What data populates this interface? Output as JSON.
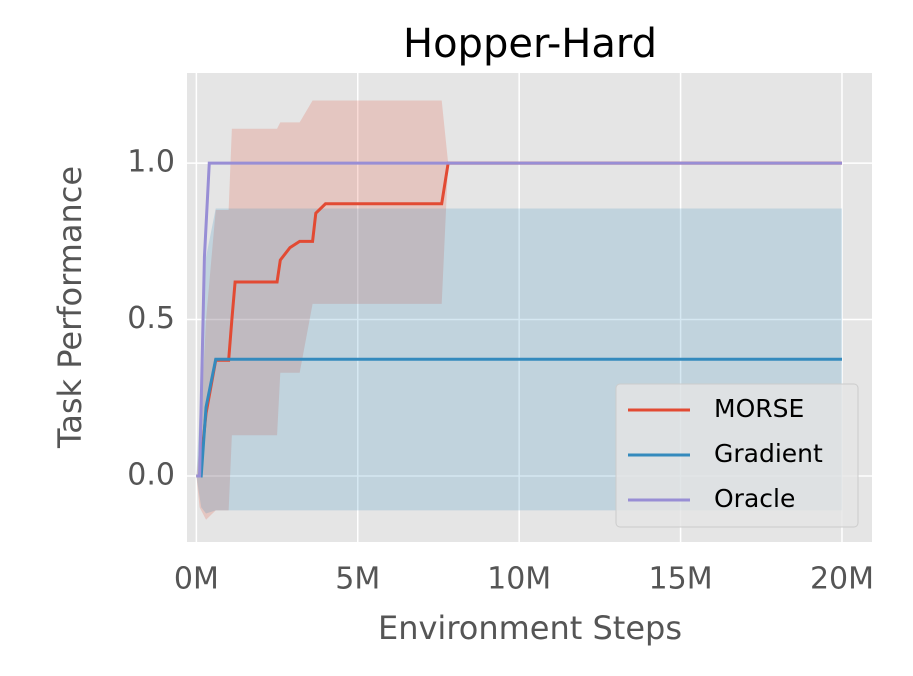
{
  "chart_data": {
    "type": "line",
    "title": "Hopper-Hard",
    "x_label": "Environment Steps",
    "y_label": "Task Performance",
    "xlim": [
      -290000,
      20930000
    ],
    "ylim": [
      -0.211,
      1.288
    ],
    "xticks": [
      {
        "value": 0,
        "label": "0M"
      },
      {
        "value": 5000000,
        "label": "5M"
      },
      {
        "value": 10000000,
        "label": "10M"
      },
      {
        "value": 15000000,
        "label": "15M"
      },
      {
        "value": 20000000,
        "label": "20M"
      }
    ],
    "yticks": [
      {
        "value": 0,
        "label": "0.0"
      },
      {
        "value": 0.5,
        "label": "0.5"
      },
      {
        "value": 1,
        "label": "1.0"
      }
    ],
    "grid": true,
    "legend": "lower right",
    "series": [
      {
        "name": "MORSE",
        "color": "#e24a33",
        "x": [
          0,
          100000,
          300000,
          600000,
          1000000,
          1100000,
          1200000,
          2500000,
          2600000,
          2900000,
          3200000,
          3600000,
          3700000,
          4000000,
          7600000,
          7800000,
          20000000
        ],
        "values": [
          0,
          0,
          0.2,
          0.37,
          0.37,
          0.5,
          0.62,
          0.62,
          0.69,
          0.73,
          0.75,
          0.75,
          0.84,
          0.87,
          0.87,
          1.0,
          1.0
        ],
        "upper": [
          0,
          0.1,
          0.5,
          0.85,
          0.85,
          1.11,
          1.11,
          1.11,
          1.13,
          1.13,
          1.13,
          1.2,
          1.2,
          1.2,
          1.2,
          1.0,
          1.0
        ],
        "lower": [
          0,
          -0.1,
          -0.14,
          -0.11,
          -0.11,
          0.13,
          0.13,
          0.13,
          0.33,
          0.33,
          0.33,
          0.55,
          0.55,
          0.55,
          0.55,
          1.0,
          1.0
        ]
      },
      {
        "name": "Gradient",
        "color": "#348abd",
        "x": [
          0,
          150000,
          300000,
          600000,
          20000000
        ],
        "values": [
          0,
          0,
          0.22,
          0.373,
          0.373
        ],
        "upper": [
          0,
          0.3,
          0.7,
          0.855,
          0.855
        ],
        "lower": [
          0,
          -0.1,
          -0.12,
          -0.11,
          -0.11
        ]
      },
      {
        "name": "Oracle",
        "color": "#988ed5",
        "x": [
          0,
          100000,
          250000,
          400000,
          20000000
        ],
        "values": [
          0,
          0,
          0.7,
          1.0,
          1.0
        ]
      }
    ]
  }
}
